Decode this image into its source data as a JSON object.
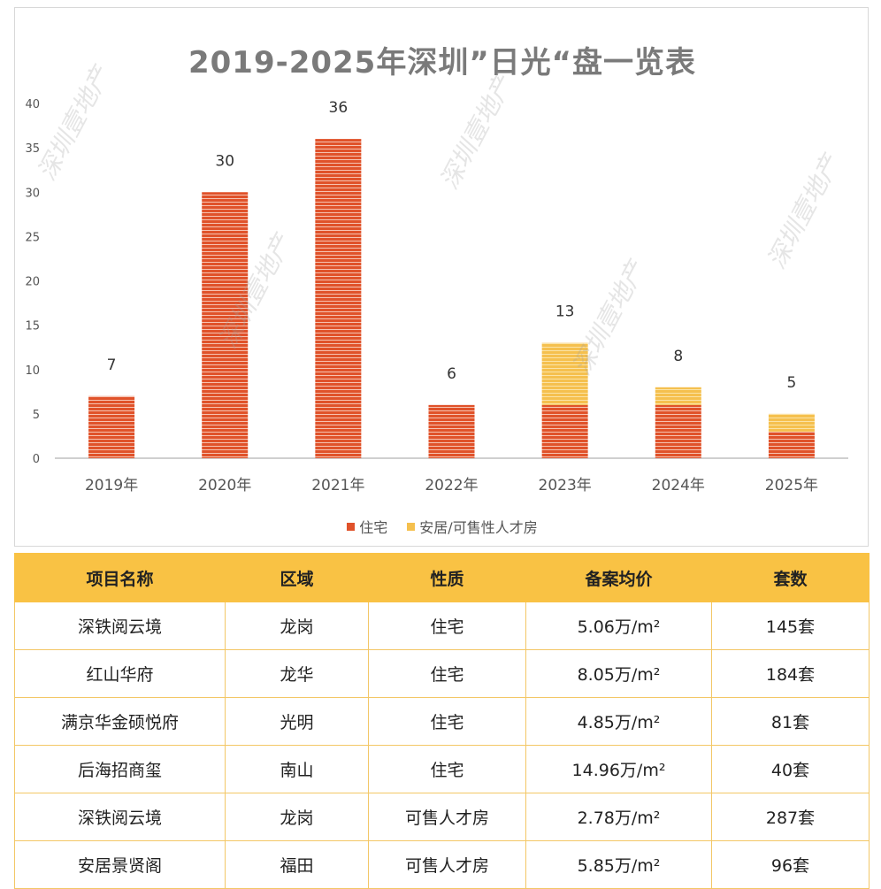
{
  "chart_data": {
    "type": "bar",
    "stacked": true,
    "title": "2019-2025年深圳”日光“盘一览表",
    "categories": [
      "2019年",
      "2020年",
      "2021年",
      "2022年",
      "2023年",
      "2024年",
      "2025年"
    ],
    "series": [
      {
        "name": "住宅",
        "values": [
          7,
          30,
          36,
          6,
          6,
          6,
          3
        ],
        "color": "#e0522a"
      },
      {
        "name": "安居/可售性人才房",
        "values": [
          0,
          0,
          0,
          0,
          7,
          2,
          2
        ],
        "color": "#f5c04e"
      }
    ],
    "totals": [
      7,
      30,
      36,
      6,
      13,
      8,
      5
    ],
    "yticks": [
      0,
      5,
      10,
      15,
      20,
      25,
      30,
      35,
      40
    ],
    "ylim": [
      0,
      40
    ],
    "xlabel": "",
    "ylabel": "",
    "legend_position": "bottom"
  },
  "watermark_text": "深圳壹地产",
  "table": {
    "headers": [
      "项目名称",
      "区域",
      "性质",
      "备案均价",
      "套数"
    ],
    "rows": [
      [
        "深铁阅云境",
        "龙岗",
        "住宅",
        "5.06万/m²",
        "145套"
      ],
      [
        "红山华府",
        "龙华",
        "住宅",
        "8.05万/m²",
        "184套"
      ],
      [
        "满京华金硕悦府",
        "光明",
        "住宅",
        "4.85万/m²",
        "81套"
      ],
      [
        "后海招商玺",
        "南山",
        "住宅",
        "14.96万/m²",
        "40套"
      ],
      [
        "深铁阅云境",
        "龙岗",
        "可售人才房",
        "2.78万/m²",
        "287套"
      ],
      [
        "安居景贤阁",
        "福田",
        "可售人才房",
        "5.85万/m²",
        "96套"
      ]
    ]
  },
  "colors": {
    "header_bg": "#f9c244",
    "residential": "#e0522a",
    "talent": "#f5c04e"
  }
}
